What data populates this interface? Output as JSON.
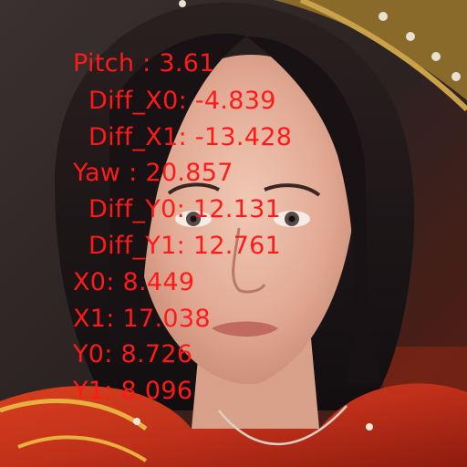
{
  "overlay": {
    "text_color": "#ff1a1a",
    "lines": [
      "Pitch : 3.61",
      "Diff_X0: -4.839",
      "Diff_X1: -13.428",
      "Yaw : 20.857",
      "Diff_Y0: 12.131",
      "Diff_Y1: 12.761",
      "X0: 8.449",
      "X1: 17.038",
      "Y0: 8.726",
      "Y1: 8.096"
    ]
  }
}
